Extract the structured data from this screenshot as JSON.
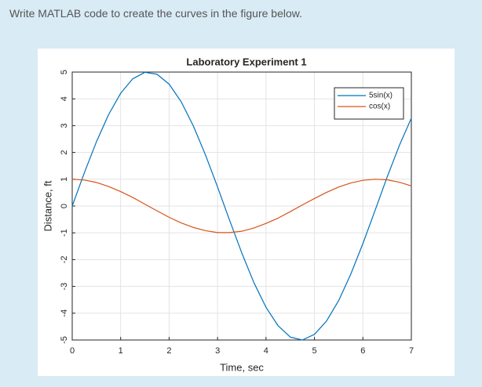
{
  "question": "Write MATLAB code to create the curves in the figure below.",
  "chart_data": {
    "type": "line",
    "title": "Laboratory Experiment 1",
    "x_label": "Time, sec",
    "y_label": "Distance, ft",
    "x": [
      0,
      0.25,
      0.5,
      0.75,
      1,
      1.25,
      1.5,
      1.75,
      2,
      2.25,
      2.5,
      2.75,
      3,
      3.25,
      3.5,
      3.75,
      4,
      4.25,
      4.5,
      4.75,
      5,
      5.25,
      5.5,
      5.75,
      6,
      6.25,
      6.5,
      6.75,
      7
    ],
    "series": [
      {
        "name": "5sin(x)",
        "color": "#0072bd",
        "values": [
          0,
          1.24,
          2.4,
          3.41,
          4.21,
          4.75,
          4.99,
          4.92,
          4.55,
          3.89,
          2.99,
          1.91,
          0.71,
          -0.54,
          -1.75,
          -2.86,
          -3.78,
          -4.47,
          -4.89,
          -5.0,
          -4.79,
          -4.29,
          -3.53,
          -2.54,
          -1.4,
          -0.17,
          1.08,
          2.25,
          3.28
        ]
      },
      {
        "name": "cos(x)",
        "color": "#d95319",
        "values": [
          1,
          0.97,
          0.88,
          0.73,
          0.54,
          0.32,
          0.07,
          -0.18,
          -0.42,
          -0.63,
          -0.8,
          -0.92,
          -0.99,
          -0.99,
          -0.94,
          -0.82,
          -0.65,
          -0.45,
          -0.21,
          0.04,
          0.28,
          0.51,
          0.71,
          0.86,
          0.96,
          1.0,
          0.98,
          0.89,
          0.75
        ]
      }
    ],
    "xlim": [
      0,
      7
    ],
    "xticks": [
      0,
      1,
      2,
      3,
      4,
      5,
      6,
      7
    ],
    "ylim": [
      -5,
      5
    ],
    "yticks": [
      -5,
      -4,
      -3,
      -2,
      -1,
      0,
      1,
      2,
      3,
      4,
      5
    ],
    "grid": true,
    "legend": "top-right"
  }
}
